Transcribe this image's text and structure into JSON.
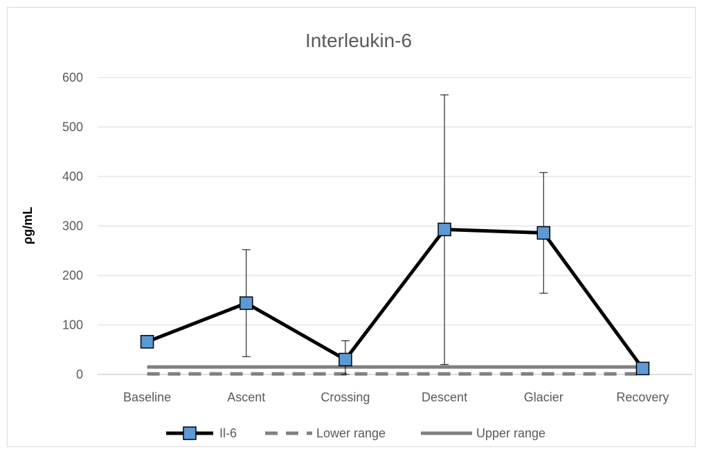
{
  "chart_data": {
    "type": "line",
    "title": "Interleukin-6",
    "xlabel": "",
    "ylabel": "ρg/mL",
    "categories": [
      "Baseline",
      "Ascent",
      "Crossing",
      "Descent",
      "Glacier",
      "Recovery"
    ],
    "ylim": [
      0,
      600
    ],
    "yticks": [
      0,
      100,
      200,
      300,
      400,
      500,
      600
    ],
    "grid": "horizontal",
    "legend_position": "bottom",
    "series": [
      {
        "name": "Il-6",
        "values": [
          66,
          144,
          30,
          293,
          286,
          12
        ],
        "error_low": [
          null,
          36,
          0,
          20,
          164,
          null
        ],
        "error_high": [
          null,
          252,
          68,
          565,
          408,
          null
        ],
        "color": "#000000",
        "marker": "square",
        "marker_color": "#5b9bd5"
      },
      {
        "name": "Lower range",
        "values": [
          1,
          1,
          1,
          1,
          1,
          1
        ],
        "color": "#808080",
        "style": "dashed"
      },
      {
        "name": "Upper range",
        "values": [
          15,
          15,
          15,
          15,
          15,
          15
        ],
        "color": "#808080",
        "style": "solid"
      }
    ]
  }
}
